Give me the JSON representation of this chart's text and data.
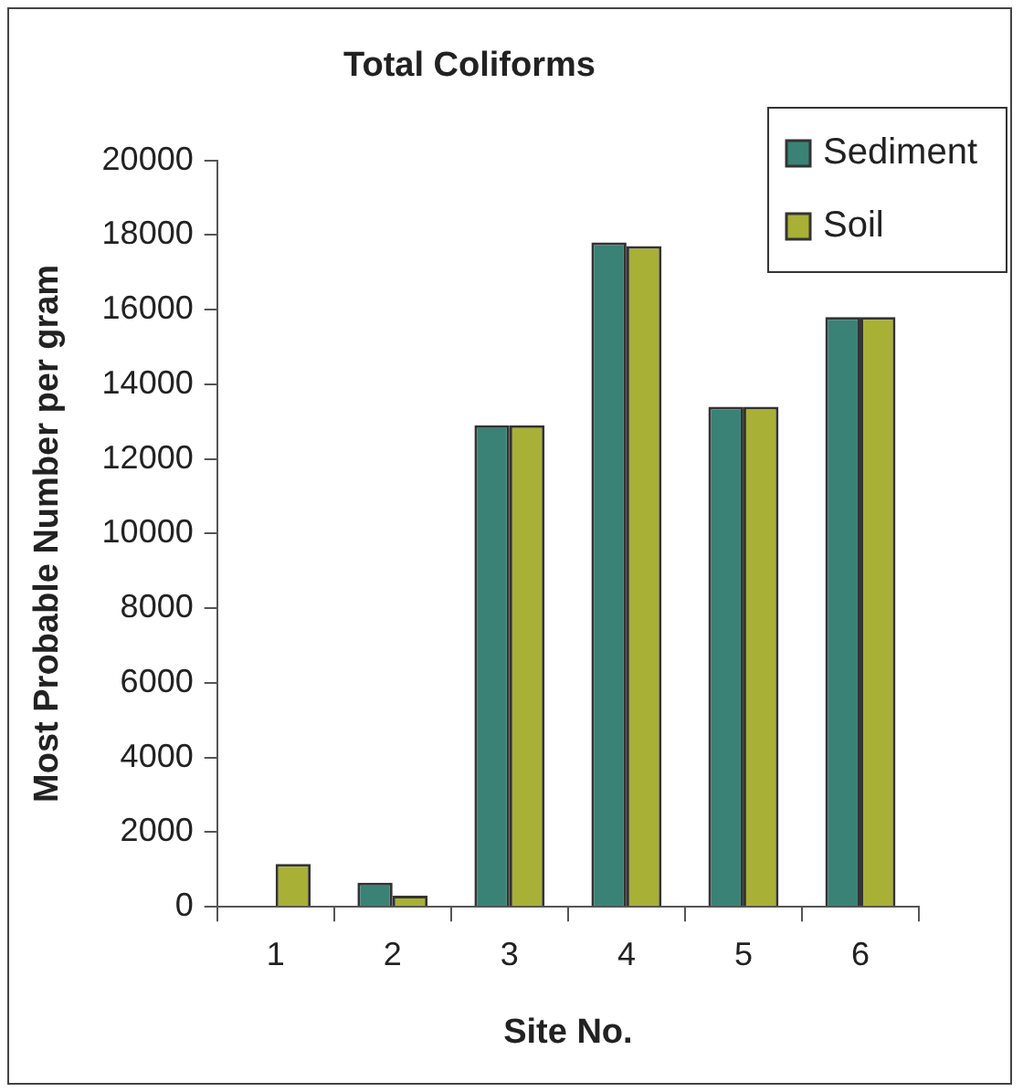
{
  "chart_data": {
    "type": "bar",
    "title": "Total Coliforms",
    "xlabel": "Site No.",
    "ylabel": "Most Probable Number per gram",
    "categories": [
      "1",
      "2",
      "3",
      "4",
      "5",
      "6"
    ],
    "series": [
      {
        "name": "Sediment",
        "color": "#3a8275",
        "values": [
          null,
          650,
          12900,
          17800,
          13400,
          15800
        ]
      },
      {
        "name": "Soil",
        "color": "#a8b036",
        "values": [
          1150,
          300,
          12900,
          17700,
          13400,
          15800
        ]
      }
    ],
    "ylim": [
      0,
      20000
    ],
    "yticks": [
      0,
      2000,
      4000,
      6000,
      8000,
      10000,
      12000,
      14000,
      16000,
      18000,
      20000
    ],
    "grid": false,
    "legend": "top right"
  }
}
